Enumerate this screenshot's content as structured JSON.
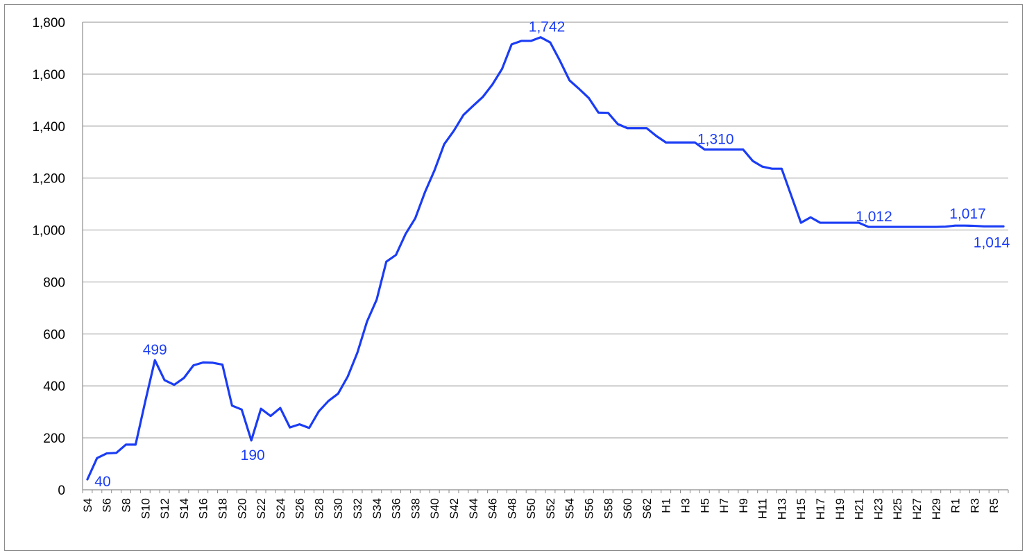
{
  "chart_data": {
    "type": "line",
    "title": "",
    "xlabel": "",
    "ylabel": "",
    "ylim": [
      0,
      1800
    ],
    "y_ticks": [
      0,
      200,
      400,
      600,
      800,
      1000,
      1200,
      1400,
      1600,
      1800
    ],
    "y_tick_labels": [
      "0",
      "200",
      "400",
      "600",
      "800",
      "1,000",
      "1,200",
      "1,400",
      "1,600",
      "1,800"
    ],
    "grid": true,
    "legend": "none",
    "line_color": "#1a3cf5",
    "categories": [
      "S4",
      "S5",
      "S6",
      "S7",
      "S8",
      "S9",
      "S10",
      "S11",
      "S12",
      "S13",
      "S14",
      "S15",
      "S16",
      "S17",
      "S18",
      "S19",
      "S20",
      "S21",
      "S22",
      "S23",
      "S24",
      "S25",
      "S26",
      "S27",
      "S28",
      "S29",
      "S30",
      "S31",
      "S32",
      "S33",
      "S34",
      "S35",
      "S36",
      "S37",
      "S38",
      "S39",
      "S40",
      "S41",
      "S42",
      "S43",
      "S44",
      "S45",
      "S46",
      "S47",
      "S48",
      "S49",
      "S50",
      "S51",
      "S52",
      "S53",
      "S54",
      "S55",
      "S56",
      "S57",
      "S58",
      "S59",
      "S60",
      "S61",
      "S62",
      "S63",
      "H1",
      "H2",
      "H3",
      "H4",
      "H5",
      "H6",
      "H7",
      "H8",
      "H9",
      "H10",
      "H11",
      "H12",
      "H13",
      "H14",
      "H15",
      "H16",
      "H17",
      "H18",
      "H19",
      "H20",
      "H21",
      "H22",
      "H23",
      "H24",
      "H25",
      "H26",
      "H27",
      "H28",
      "H29",
      "H30",
      "R1",
      "R2",
      "R3",
      "R4",
      "R5",
      "R6"
    ],
    "tick_labels": [
      "S4",
      "S6",
      "S8",
      "S10",
      "S12",
      "S14",
      "S16",
      "S18",
      "S20",
      "S22",
      "S24",
      "S26",
      "S28",
      "S30",
      "S32",
      "S34",
      "S36",
      "S38",
      "S40",
      "S42",
      "S44",
      "S46",
      "S48",
      "S50",
      "S52",
      "S54",
      "S56",
      "S58",
      "S60",
      "S62",
      "H1",
      "H3",
      "H5",
      "H7",
      "H9",
      "H11",
      "H13",
      "H15",
      "H17",
      "H19",
      "H21",
      "H23",
      "H25",
      "H27",
      "H29",
      "R1",
      "R3",
      "R5"
    ],
    "series": [
      {
        "values": [
          40,
          122,
          140,
          142,
          174,
          174,
          340,
          499,
          422,
          404,
          430,
          479,
          490,
          489,
          482,
          324,
          309,
          190,
          312,
          284,
          315,
          240,
          252,
          238,
          302,
          342,
          370,
          436,
          528,
          648,
          732,
          878,
          904,
          985,
          1045,
          1145,
          1230,
          1330,
          1382,
          1443,
          1478,
          1512,
          1560,
          1620,
          1715,
          1728,
          1728,
          1742,
          1722,
          1652,
          1576,
          1543,
          1508,
          1452,
          1451,
          1408,
          1392,
          1392,
          1392,
          1362,
          1337,
          1337,
          1337,
          1337,
          1310,
          1310,
          1310,
          1310,
          1310,
          1266,
          1244,
          1236,
          1236,
          1132,
          1028,
          1049,
          1028,
          1028,
          1028,
          1028,
          1028,
          1012,
          1012,
          1012,
          1012,
          1012,
          1012,
          1012,
          1012,
          1013,
          1017,
          1017,
          1016,
          1014,
          1014,
          1014
        ]
      }
    ],
    "data_labels": [
      {
        "category": "S4",
        "text": "40"
      },
      {
        "category": "S11",
        "text": "499"
      },
      {
        "category": "S21",
        "text": "190"
      },
      {
        "category": "S51",
        "text": "1,742"
      },
      {
        "category": "H5",
        "text": "1,310"
      },
      {
        "category": "H22",
        "text": "1,012"
      },
      {
        "category": "R1",
        "text": "1,017"
      },
      {
        "category": "R6",
        "text": "1,014"
      }
    ]
  }
}
